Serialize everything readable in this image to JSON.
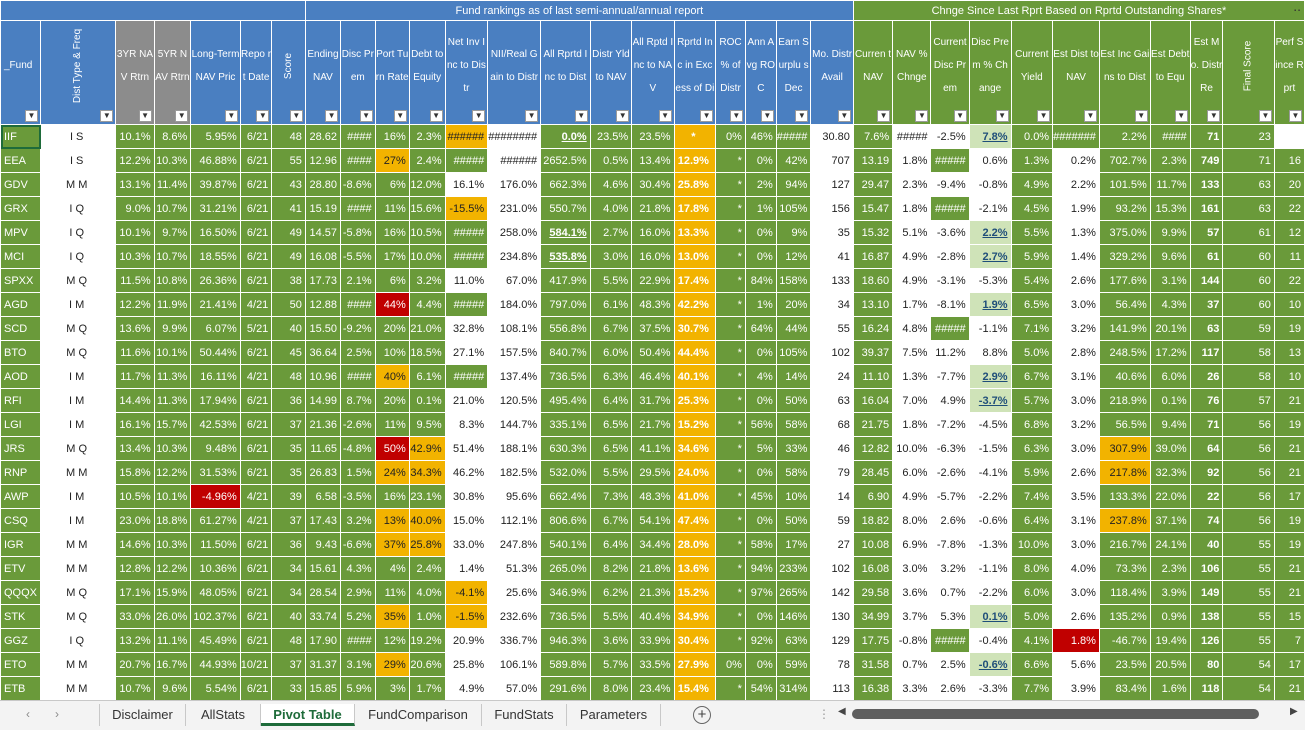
{
  "banner": {
    "left": "Fund rankings as of last semi-annual/annual report",
    "right": "Chnge Since Last Rprt Based on Rprtd Outstanding Shares*"
  },
  "headers": [
    {
      "label": "_Fund",
      "style": "fund"
    },
    {
      "label": "Dist Type & Freq",
      "style": "rot"
    },
    {
      "label": "3YR NAV Rtrn",
      "style": "gr"
    },
    {
      "label": "5YR NAV Rtrn",
      "style": "gr"
    },
    {
      "label": "Long-Term NAV Pric",
      "style": "b"
    },
    {
      "label": "Repo rt Date",
      "style": "b"
    },
    {
      "label": "Score",
      "style": "rot"
    },
    {
      "label": "Ending NAV",
      "style": "b"
    },
    {
      "label": "Disc Prem",
      "style": "b"
    },
    {
      "label": "Port Turn Rate",
      "style": "b"
    },
    {
      "label": "Debt to Equity",
      "style": "b"
    },
    {
      "label": "Net Inv Inc to Distr",
      "style": "b"
    },
    {
      "label": "NII/Real Gain to Distr",
      "style": "b"
    },
    {
      "label": "All Rprtd Inc to Dist",
      "style": "b"
    },
    {
      "label": "Distr Yld to NAV",
      "style": "b"
    },
    {
      "label": "All Rptd Inc to NAV",
      "style": "b"
    },
    {
      "label": "Rprtd Inc in Excess of Di",
      "style": "b"
    },
    {
      "label": "ROC % of Distr",
      "style": "b"
    },
    {
      "label": "Ann Avg ROC",
      "style": "b"
    },
    {
      "label": "Earn Surplu s Dec",
      "style": "b"
    },
    {
      "label": "Mo. Distr Avail",
      "style": "b"
    },
    {
      "label": "Curren t NAV",
      "style": "g"
    },
    {
      "label": "NAV % Chnge",
      "style": "g"
    },
    {
      "label": "Current Disc Prem",
      "style": "g"
    },
    {
      "label": "Disc Prem % Change",
      "style": "g"
    },
    {
      "label": "Current Yield",
      "style": "g"
    },
    {
      "label": "Est Dist to NAV",
      "style": "g"
    },
    {
      "label": "Est Inc Gains to Dist",
      "style": "g"
    },
    {
      "label": "Est Debt to Equ",
      "style": "g"
    },
    {
      "label": "Est Mo. Distr Re",
      "style": "g"
    },
    {
      "label": "Final Score",
      "style": "grot"
    },
    {
      "label": "Perf Since Rprt",
      "style": "g"
    }
  ],
  "filter_glyph": "▼",
  "rows": [
    [
      "IIF",
      "I S",
      "10.1%",
      "8.6%",
      "5.95%",
      "6/21",
      "48",
      "28.62",
      "####",
      "16%",
      "2.3%",
      "######",
      "########",
      "0.0%",
      "23.5%",
      "23.5%",
      "*",
      "0%",
      "46%",
      "#####",
      "30.80",
      "7.6%",
      "#####",
      "-2.5%",
      "7.8%",
      "0.0%",
      "#######",
      "2.2%",
      "####",
      "71",
      "23"
    ],
    [
      "EEA",
      "I S",
      "12.2%",
      "10.3%",
      "46.88%",
      "6/21",
      "55",
      "12.96",
      "####",
      "27%",
      "2.4%",
      "#####",
      "######",
      "2652.5%",
      "0.5%",
      "13.4%",
      "12.9%",
      "*",
      "0%",
      "42%",
      "707",
      "13.19",
      "1.8%",
      "#####",
      "0.6%",
      "1.3%",
      "0.2%",
      "702.7%",
      "2.3%",
      "749",
      "71",
      "16"
    ],
    [
      "GDV",
      "M M",
      "13.1%",
      "11.4%",
      "39.87%",
      "6/21",
      "43",
      "28.80",
      "-8.6%",
      "6%",
      "12.0%",
      "16.1%",
      "176.0%",
      "662.3%",
      "4.6%",
      "30.4%",
      "25.8%",
      "*",
      "2%",
      "94%",
      "127",
      "29.47",
      "2.3%",
      "-9.4%",
      "-0.8%",
      "4.9%",
      "2.2%",
      "101.5%",
      "11.7%",
      "133",
      "63",
      "20"
    ],
    [
      "GRX",
      "I Q",
      "9.0%",
      "10.7%",
      "31.21%",
      "6/21",
      "41",
      "15.19",
      "####",
      "11%",
      "15.6%",
      "-15.5%",
      "231.0%",
      "550.7%",
      "4.0%",
      "21.8%",
      "17.8%",
      "*",
      "1%",
      "105%",
      "156",
      "15.47",
      "1.8%",
      "#####",
      "-2.1%",
      "4.5%",
      "1.9%",
      "93.2%",
      "15.3%",
      "161",
      "63",
      "22"
    ],
    [
      "MPV",
      "I Q",
      "10.1%",
      "9.7%",
      "16.50%",
      "6/21",
      "49",
      "14.57",
      "-5.8%",
      "16%",
      "10.5%",
      "#####",
      "258.0%",
      "584.1%",
      "2.7%",
      "16.0%",
      "13.3%",
      "*",
      "0%",
      "9%",
      "35",
      "15.32",
      "5.1%",
      "-3.6%",
      "2.2%",
      "5.5%",
      "1.3%",
      "375.0%",
      "9.9%",
      "57",
      "61",
      "12"
    ],
    [
      "MCI",
      "I Q",
      "10.3%",
      "10.7%",
      "18.55%",
      "6/21",
      "49",
      "16.08",
      "-5.5%",
      "17%",
      "10.0%",
      "#####",
      "234.8%",
      "535.8%",
      "3.0%",
      "16.0%",
      "13.0%",
      "*",
      "0%",
      "12%",
      "41",
      "16.87",
      "4.9%",
      "-2.8%",
      "2.7%",
      "5.9%",
      "1.4%",
      "329.2%",
      "9.6%",
      "61",
      "60",
      "11"
    ],
    [
      "SPXX",
      "M Q",
      "11.5%",
      "10.8%",
      "26.36%",
      "6/21",
      "38",
      "17.73",
      "2.1%",
      "6%",
      "3.2%",
      "11.0%",
      "67.0%",
      "417.9%",
      "5.5%",
      "22.9%",
      "17.4%",
      "*",
      "84%",
      "158%",
      "133",
      "18.60",
      "4.9%",
      "-3.1%",
      "-5.3%",
      "5.4%",
      "2.6%",
      "177.6%",
      "3.1%",
      "144",
      "60",
      "22"
    ],
    [
      "AGD",
      "I M",
      "12.2%",
      "11.9%",
      "21.41%",
      "4/21",
      "50",
      "12.88",
      "####",
      "44%",
      "4.4%",
      "#####",
      "184.0%",
      "797.0%",
      "6.1%",
      "48.3%",
      "42.2%",
      "*",
      "1%",
      "20%",
      "34",
      "13.10",
      "1.7%",
      "-8.1%",
      "1.9%",
      "6.5%",
      "3.0%",
      "56.4%",
      "4.3%",
      "37",
      "60",
      "10"
    ],
    [
      "SCD",
      "M Q",
      "13.6%",
      "9.9%",
      "6.07%",
      "5/21",
      "40",
      "15.50",
      "-9.2%",
      "20%",
      "21.0%",
      "32.8%",
      "108.1%",
      "556.8%",
      "6.7%",
      "37.5%",
      "30.7%",
      "*",
      "64%",
      "44%",
      "55",
      "16.24",
      "4.8%",
      "#####",
      "-1.1%",
      "7.1%",
      "3.2%",
      "141.9%",
      "20.1%",
      "63",
      "59",
      "19"
    ],
    [
      "BTO",
      "M Q",
      "11.6%",
      "10.1%",
      "50.44%",
      "6/21",
      "45",
      "36.64",
      "2.5%",
      "10%",
      "18.5%",
      "27.1%",
      "157.5%",
      "840.7%",
      "6.0%",
      "50.4%",
      "44.4%",
      "*",
      "0%",
      "105%",
      "102",
      "39.37",
      "7.5%",
      "11.2%",
      "8.8%",
      "5.0%",
      "2.8%",
      "248.5%",
      "17.2%",
      "117",
      "58",
      "13"
    ],
    [
      "AOD",
      "I M",
      "11.7%",
      "11.3%",
      "16.11%",
      "4/21",
      "48",
      "10.96",
      "####",
      "40%",
      "6.1%",
      "#####",
      "137.4%",
      "736.5%",
      "6.3%",
      "46.4%",
      "40.1%",
      "*",
      "4%",
      "14%",
      "24",
      "11.10",
      "1.3%",
      "-7.7%",
      "2.9%",
      "6.7%",
      "3.1%",
      "40.6%",
      "6.0%",
      "26",
      "58",
      "10"
    ],
    [
      "RFI",
      "I M",
      "14.4%",
      "11.3%",
      "17.94%",
      "6/21",
      "36",
      "14.99",
      "8.7%",
      "20%",
      "0.1%",
      "21.0%",
      "120.5%",
      "495.4%",
      "6.4%",
      "31.7%",
      "25.3%",
      "*",
      "0%",
      "50%",
      "63",
      "16.04",
      "7.0%",
      "4.9%",
      "-3.7%",
      "5.7%",
      "3.0%",
      "218.9%",
      "0.1%",
      "76",
      "57",
      "21"
    ],
    [
      "LGI",
      "I M",
      "16.1%",
      "15.7%",
      "42.53%",
      "6/21",
      "37",
      "21.36",
      "-2.6%",
      "11%",
      "9.5%",
      "8.3%",
      "144.7%",
      "335.1%",
      "6.5%",
      "21.7%",
      "15.2%",
      "*",
      "56%",
      "58%",
      "68",
      "21.75",
      "1.8%",
      "-7.2%",
      "-4.5%",
      "6.8%",
      "3.2%",
      "56.5%",
      "9.4%",
      "71",
      "56",
      "19"
    ],
    [
      "JRS",
      "M Q",
      "13.4%",
      "10.3%",
      "9.48%",
      "6/21",
      "35",
      "11.65",
      "-4.8%",
      "50%",
      "42.9%",
      "51.4%",
      "188.1%",
      "630.3%",
      "6.5%",
      "41.1%",
      "34.6%",
      "*",
      "5%",
      "33%",
      "46",
      "12.82",
      "10.0%",
      "-6.3%",
      "-1.5%",
      "6.3%",
      "3.0%",
      "307.9%",
      "39.0%",
      "64",
      "56",
      "21"
    ],
    [
      "RNP",
      "M M",
      "15.8%",
      "12.2%",
      "31.53%",
      "6/21",
      "35",
      "26.83",
      "1.5%",
      "24%",
      "34.3%",
      "46.2%",
      "182.5%",
      "532.0%",
      "5.5%",
      "29.5%",
      "24.0%",
      "*",
      "0%",
      "58%",
      "79",
      "28.45",
      "6.0%",
      "-2.6%",
      "-4.1%",
      "5.9%",
      "2.6%",
      "217.8%",
      "32.3%",
      "92",
      "56",
      "21"
    ],
    [
      "AWP",
      "I M",
      "10.5%",
      "10.1%",
      "-4.96%",
      "4/21",
      "39",
      "6.58",
      "-3.5%",
      "16%",
      "23.1%",
      "30.8%",
      "95.6%",
      "662.4%",
      "7.3%",
      "48.3%",
      "41.0%",
      "*",
      "45%",
      "10%",
      "14",
      "6.90",
      "4.9%",
      "-5.7%",
      "-2.2%",
      "7.4%",
      "3.5%",
      "133.3%",
      "22.0%",
      "22",
      "56",
      "17"
    ],
    [
      "CSQ",
      "I M",
      "23.0%",
      "18.8%",
      "61.27%",
      "4/21",
      "37",
      "17.43",
      "3.2%",
      "13%",
      "40.0%",
      "15.0%",
      "112.1%",
      "806.6%",
      "6.7%",
      "54.1%",
      "47.4%",
      "*",
      "0%",
      "50%",
      "59",
      "18.82",
      "8.0%",
      "2.6%",
      "-0.6%",
      "6.4%",
      "3.1%",
      "237.8%",
      "37.1%",
      "74",
      "56",
      "19"
    ],
    [
      "IGR",
      "M M",
      "14.6%",
      "10.3%",
      "11.50%",
      "6/21",
      "36",
      "9.43",
      "-6.6%",
      "37%",
      "25.8%",
      "33.0%",
      "247.8%",
      "540.1%",
      "6.4%",
      "34.4%",
      "28.0%",
      "*",
      "58%",
      "17%",
      "27",
      "10.08",
      "6.9%",
      "-7.8%",
      "-1.3%",
      "10.0%",
      "3.0%",
      "216.7%",
      "24.1%",
      "40",
      "55",
      "19"
    ],
    [
      "ETV",
      "M M",
      "12.8%",
      "12.2%",
      "10.36%",
      "6/21",
      "34",
      "15.61",
      "4.3%",
      "4%",
      "2.4%",
      "1.4%",
      "51.3%",
      "265.0%",
      "8.2%",
      "21.8%",
      "13.6%",
      "*",
      "94%",
      "233%",
      "102",
      "16.08",
      "3.0%",
      "3.2%",
      "-1.1%",
      "8.0%",
      "4.0%",
      "73.3%",
      "2.3%",
      "106",
      "55",
      "21"
    ],
    [
      "QQQX",
      "M Q",
      "17.1%",
      "15.9%",
      "48.05%",
      "6/21",
      "34",
      "28.54",
      "2.9%",
      "11%",
      "4.0%",
      "-4.1%",
      "25.6%",
      "346.9%",
      "6.2%",
      "21.3%",
      "15.2%",
      "*",
      "97%",
      "265%",
      "142",
      "29.58",
      "3.6%",
      "0.7%",
      "-2.2%",
      "6.0%",
      "3.0%",
      "118.4%",
      "3.9%",
      "149",
      "55",
      "21"
    ],
    [
      "STK",
      "M Q",
      "33.0%",
      "26.0%",
      "102.37%",
      "6/21",
      "40",
      "33.74",
      "5.2%",
      "35%",
      "1.0%",
      "-1.5%",
      "232.6%",
      "736.5%",
      "5.5%",
      "40.4%",
      "34.9%",
      "*",
      "0%",
      "146%",
      "130",
      "34.99",
      "3.7%",
      "5.3%",
      "0.1%",
      "5.0%",
      "2.6%",
      "135.2%",
      "0.9%",
      "138",
      "55",
      "15"
    ],
    [
      "GGZ",
      "I Q",
      "13.2%",
      "11.1%",
      "45.49%",
      "6/21",
      "48",
      "17.90",
      "####",
      "12%",
      "19.2%",
      "20.9%",
      "336.7%",
      "946.3%",
      "3.6%",
      "33.9%",
      "30.4%",
      "*",
      "92%",
      "63%",
      "129",
      "17.75",
      "-0.8%",
      "#####",
      "-0.4%",
      "4.1%",
      "1.8%",
      "-46.7%",
      "19.4%",
      "126",
      "55",
      "7"
    ],
    [
      "ETO",
      "M M",
      "20.7%",
      "16.7%",
      "44.93%",
      "10/21",
      "37",
      "31.37",
      "3.1%",
      "29%",
      "20.6%",
      "25.8%",
      "106.1%",
      "589.8%",
      "5.7%",
      "33.5%",
      "27.9%",
      "0%",
      "0%",
      "59%",
      "78",
      "31.58",
      "0.7%",
      "2.5%",
      "-0.6%",
      "6.6%",
      "5.6%",
      "23.5%",
      "20.5%",
      "80",
      "54",
      "17"
    ],
    [
      "ETB",
      "M M",
      "10.7%",
      "9.6%",
      "5.54%",
      "6/21",
      "33",
      "15.85",
      "5.9%",
      "3%",
      "1.7%",
      "4.9%",
      "57.0%",
      "291.6%",
      "8.0%",
      "23.4%",
      "15.4%",
      "*",
      "54%",
      "314%",
      "113",
      "16.38",
      "3.3%",
      "2.6%",
      "-3.3%",
      "7.7%",
      "3.9%",
      "83.4%",
      "1.6%",
      "118",
      "54",
      "21"
    ]
  ],
  "tabs": [
    "Disclaimer",
    "AllStats",
    "Pivot Table",
    "FundComparison",
    "FundStats",
    "Parameters"
  ],
  "active_tab": "Pivot Table",
  "icons": {
    "add_sheet": "+",
    "prev_sheet": "‹",
    "next_sheet": "›",
    "more": "⋮",
    "dots": "..",
    "scroll_left": "◀",
    "scroll_right": "▶"
  },
  "colors": {
    "header_blue": "#4a7fc1",
    "header_green": "#6a9a3a",
    "cell_green": "#6a9a3a",
    "roc_yellow": "#f2b300",
    "highlight_red": "#c00000",
    "active_tab": "#1e6b3a"
  }
}
